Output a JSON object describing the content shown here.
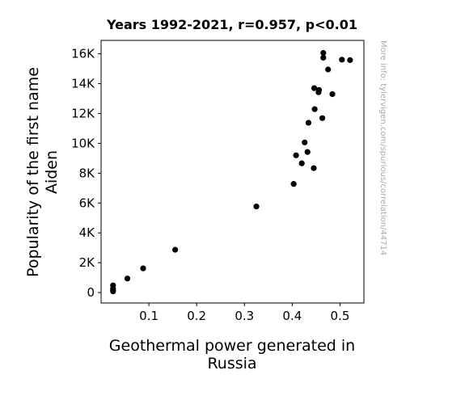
{
  "chart_data": {
    "type": "scatter",
    "title": "Years 1992-2021, r=0.957, p<0.01",
    "xlabel": [
      "Geothermal power generated in",
      "Russia"
    ],
    "ylabel": [
      "Popularity of the first name",
      "Aiden"
    ],
    "xlim": [
      0.0,
      0.55
    ],
    "ylim": [
      -700,
      16900
    ],
    "x_ticks": [
      0.1,
      0.2,
      0.3,
      0.4,
      0.5
    ],
    "x_tick_labels": [
      "0.1",
      "0.2",
      "0.3",
      "0.4",
      "0.5"
    ],
    "y_ticks": [
      0,
      2000,
      4000,
      6000,
      8000,
      10000,
      12000,
      14000,
      16000
    ],
    "y_tick_labels": [
      "0",
      "2K",
      "4K",
      "6K",
      "8K",
      "10K",
      "12K",
      "14K",
      "16K"
    ],
    "grid": false,
    "marker_color": "#000000",
    "points": [
      {
        "x": 0.025,
        "y": 80
      },
      {
        "x": 0.025,
        "y": 150
      },
      {
        "x": 0.025,
        "y": 260
      },
      {
        "x": 0.025,
        "y": 480
      },
      {
        "x": 0.055,
        "y": 940
      },
      {
        "x": 0.088,
        "y": 1620
      },
      {
        "x": 0.155,
        "y": 2870
      },
      {
        "x": 0.325,
        "y": 5770
      },
      {
        "x": 0.403,
        "y": 7280
      },
      {
        "x": 0.408,
        "y": 9200
      },
      {
        "x": 0.42,
        "y": 8660
      },
      {
        "x": 0.426,
        "y": 10060
      },
      {
        "x": 0.432,
        "y": 9420
      },
      {
        "x": 0.434,
        "y": 11380
      },
      {
        "x": 0.445,
        "y": 8340
      },
      {
        "x": 0.446,
        "y": 13700
      },
      {
        "x": 0.447,
        "y": 12290
      },
      {
        "x": 0.455,
        "y": 13420
      },
      {
        "x": 0.456,
        "y": 13580
      },
      {
        "x": 0.463,
        "y": 11690
      },
      {
        "x": 0.465,
        "y": 16060
      },
      {
        "x": 0.465,
        "y": 15740
      },
      {
        "x": 0.475,
        "y": 14950
      },
      {
        "x": 0.484,
        "y": 13300
      },
      {
        "x": 0.504,
        "y": 15610
      },
      {
        "x": 0.521,
        "y": 15580
      }
    ]
  },
  "watermark": "More info: tylervigen.com/spurious/correlation/44714"
}
